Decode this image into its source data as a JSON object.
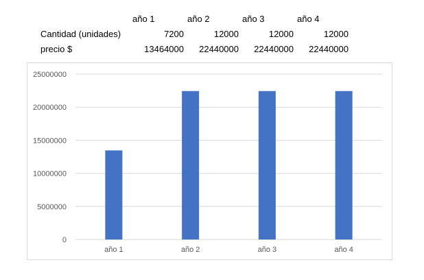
{
  "table": {
    "columns": [
      "año 1",
      "año 2",
      "año 3",
      "año 4"
    ],
    "rows": [
      {
        "label": "Cantidad (unidades)",
        "values": [
          "7200",
          "12000",
          "12000",
          "12000"
        ]
      },
      {
        "label": "precio $",
        "values": [
          "13464000",
          "22440000",
          "22440000",
          "22440000"
        ]
      }
    ]
  },
  "chart_data": {
    "type": "bar",
    "categories": [
      "año 1",
      "año 2",
      "año 3",
      "año 4"
    ],
    "series": [
      {
        "values": [
          13464000,
          22440000,
          22440000,
          22440000
        ]
      }
    ],
    "title": "",
    "xlabel": "",
    "ylabel": "",
    "ylim": [
      0,
      25000000
    ],
    "yticks": [
      0,
      5000000,
      10000000,
      15000000,
      20000000,
      25000000
    ],
    "ytick_labels": [
      "0",
      "5000000",
      "10000000",
      "15000000",
      "20000000",
      "25000000"
    ],
    "grid": true,
    "legend": "none",
    "bar_color": "#4472c4",
    "gridline_color": "#d9d9d9"
  }
}
